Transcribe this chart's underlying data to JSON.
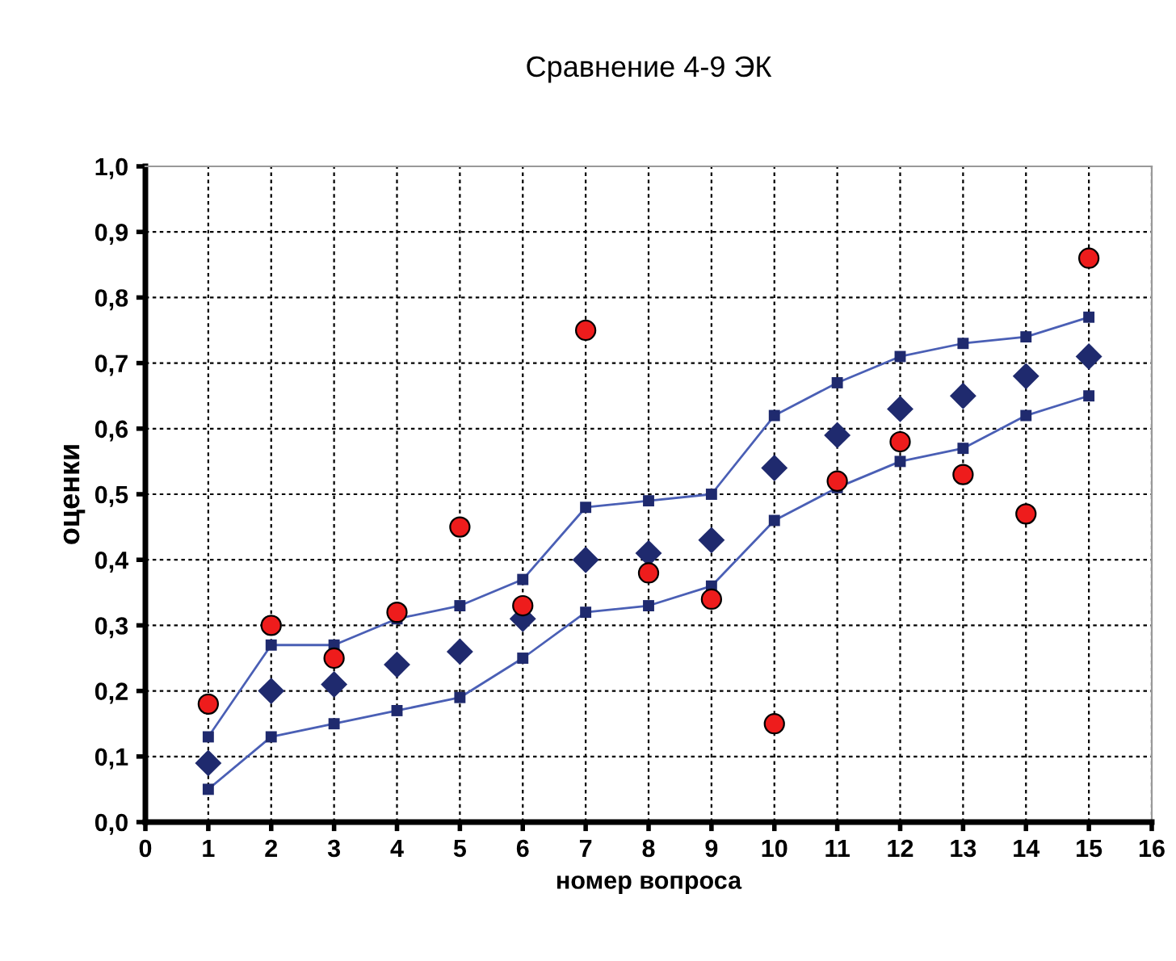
{
  "chart_data": {
    "type": "scatter",
    "title": "Сравнение 4-9 ЭК",
    "xlabel": "номер вопроса",
    "ylabel": "оценки",
    "x": [
      1,
      2,
      3,
      4,
      5,
      6,
      7,
      8,
      9,
      10,
      11,
      12,
      13,
      14,
      15
    ],
    "series": [
      {
        "type": "line",
        "color": "#4a5fb5",
        "marker": "square",
        "values": [
          0.13,
          0.27,
          0.27,
          0.31,
          0.33,
          0.37,
          0.48,
          0.49,
          0.5,
          0.62,
          0.67,
          0.71,
          0.73,
          0.74,
          0.77
        ]
      },
      {
        "type": "line",
        "color": "#4a5fb5",
        "marker": "square",
        "values": [
          0.05,
          0.13,
          0.15,
          0.17,
          0.19,
          0.25,
          0.32,
          0.33,
          0.36,
          0.46,
          0.51,
          0.55,
          0.57,
          0.62,
          0.65
        ]
      },
      {
        "color": "#1f2a6e",
        "marker": "diamond",
        "values": [
          0.09,
          0.2,
          0.21,
          0.24,
          0.26,
          0.31,
          0.4,
          0.41,
          0.43,
          0.54,
          0.59,
          0.63,
          0.65,
          0.68,
          0.71
        ]
      },
      {
        "color": "#ee1c1c",
        "marker": "circle",
        "values": [
          0.18,
          0.3,
          0.25,
          0.32,
          0.45,
          0.33,
          0.75,
          0.38,
          0.34,
          0.15,
          0.52,
          0.58,
          0.53,
          0.47,
          0.86
        ]
      }
    ],
    "xlim": [
      0,
      16
    ],
    "xticks": [
      0,
      1,
      2,
      3,
      4,
      5,
      6,
      7,
      8,
      9,
      10,
      11,
      12,
      13,
      14,
      15,
      16
    ],
    "ylim": [
      0,
      1.0
    ],
    "yticks": [
      {
        "value": 0,
        "label": "0,0"
      },
      {
        "value": 0.1,
        "label": "0,1"
      },
      {
        "value": 0.2,
        "label": "0,2"
      },
      {
        "value": 0.3,
        "label": "0,3"
      },
      {
        "value": 0.4,
        "label": "0,4"
      },
      {
        "value": 0.5,
        "label": "0,5"
      },
      {
        "value": 0.6,
        "label": "0,6"
      },
      {
        "value": 0.7,
        "label": "0,7"
      },
      {
        "value": 0.8,
        "label": "0,8"
      },
      {
        "value": 0.9,
        "label": "0,9"
      },
      {
        "value": 1.0,
        "label": "1,0"
      }
    ],
    "grid": true
  }
}
